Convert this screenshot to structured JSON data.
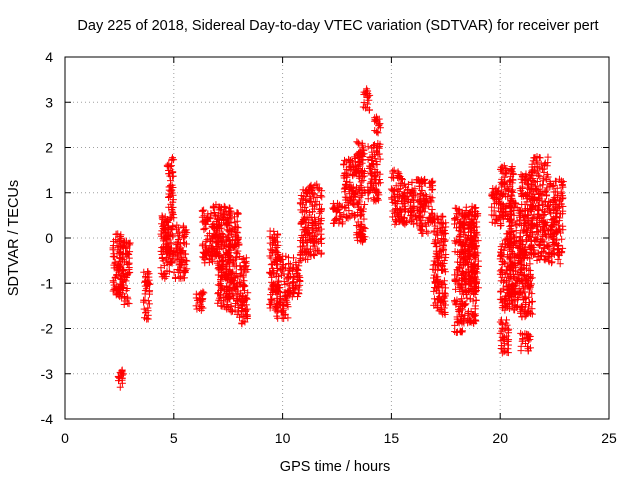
{
  "chart_data": {
    "type": "scatter",
    "title": "Day 225 of 2018, Sidereal Day-to-day VTEC variation (SDTVAR) for receiver pert",
    "xlabel": "GPS time / hours",
    "ylabel": "SDTVAR / TECUs",
    "xlim": [
      0,
      25
    ],
    "ylim": [
      -4,
      4
    ],
    "xticks": [
      "0",
      "5",
      "10",
      "15",
      "20",
      "25"
    ],
    "yticks": [
      "4",
      "3",
      "2",
      "1",
      "0",
      "-1",
      "-2",
      "-3",
      "-4"
    ],
    "grid": true,
    "marker": "plus",
    "color": "#ff0000",
    "series": [
      {
        "name": "SDTVAR",
        "clusters": [
          {
            "x": [
              2.2,
              2.6
            ],
            "y": [
              -1.3,
              0.1
            ]
          },
          {
            "x": [
              2.5,
              3.0
            ],
            "y": [
              -1.5,
              0.0
            ]
          },
          {
            "x": [
              2.4,
              2.7
            ],
            "y": [
              -3.3,
              -2.9
            ]
          },
          {
            "x": [
              3.6,
              3.9
            ],
            "y": [
              -1.8,
              -0.7
            ]
          },
          {
            "x": [
              4.4,
              4.8
            ],
            "y": [
              -0.9,
              0.5
            ]
          },
          {
            "x": [
              4.7,
              5.0
            ],
            "y": [
              -0.6,
              1.8
            ]
          },
          {
            "x": [
              5.0,
              5.6
            ],
            "y": [
              -0.9,
              0.3
            ]
          },
          {
            "x": [
              6.0,
              6.4
            ],
            "y": [
              -1.6,
              -1.1
            ]
          },
          {
            "x": [
              6.3,
              7.1
            ],
            "y": [
              -0.6,
              0.8
            ]
          },
          {
            "x": [
              7.0,
              7.6
            ],
            "y": [
              -1.6,
              0.7
            ]
          },
          {
            "x": [
              7.4,
              8.0
            ],
            "y": [
              -1.7,
              0.6
            ]
          },
          {
            "x": [
              8.0,
              8.4
            ],
            "y": [
              -1.9,
              -0.4
            ]
          },
          {
            "x": [
              9.4,
              9.8
            ],
            "y": [
              -1.6,
              0.2
            ]
          },
          {
            "x": [
              9.7,
              10.3
            ],
            "y": [
              -1.8,
              -0.4
            ]
          },
          {
            "x": [
              10.3,
              10.8
            ],
            "y": [
              -1.3,
              -0.4
            ]
          },
          {
            "x": [
              10.8,
              11.2
            ],
            "y": [
              -0.5,
              1.1
            ]
          },
          {
            "x": [
              11.2,
              11.8
            ],
            "y": [
              -0.4,
              1.2
            ]
          },
          {
            "x": [
              12.3,
              12.8
            ],
            "y": [
              0.3,
              0.8
            ]
          },
          {
            "x": [
              12.8,
              13.4
            ],
            "y": [
              0.4,
              1.8
            ]
          },
          {
            "x": [
              13.4,
              13.8
            ],
            "y": [
              -0.1,
              2.2
            ]
          },
          {
            "x": [
              13.7,
              14.0
            ],
            "y": [
              2.8,
              3.3
            ]
          },
          {
            "x": [
              14.2,
              14.5
            ],
            "y": [
              2.3,
              2.7
            ]
          },
          {
            "x": [
              13.9,
              14.5
            ],
            "y": [
              0.8,
              2.1
            ]
          },
          {
            "x": [
              15.0,
              15.6
            ],
            "y": [
              0.3,
              1.5
            ]
          },
          {
            "x": [
              15.5,
              16.4
            ],
            "y": [
              0.3,
              1.3
            ]
          },
          {
            "x": [
              16.3,
              16.9
            ],
            "y": [
              0.1,
              1.3
            ]
          },
          {
            "x": [
              16.9,
              17.5
            ],
            "y": [
              -1.5,
              0.5
            ]
          },
          {
            "x": [
              17.1,
              17.5
            ],
            "y": [
              -1.7,
              -1.3
            ]
          },
          {
            "x": [
              17.9,
              18.3
            ],
            "y": [
              -2.1,
              -1.3
            ]
          },
          {
            "x": [
              17.9,
              18.4
            ],
            "y": [
              -1.2,
              0.7
            ]
          },
          {
            "x": [
              18.3,
              18.9
            ],
            "y": [
              -1.9,
              0.7
            ]
          },
          {
            "x": [
              18.5,
              19.0
            ],
            "y": [
              -1.2,
              0.6
            ]
          },
          {
            "x": [
              19.6,
              20.0
            ],
            "y": [
              0.3,
              1.1
            ]
          },
          {
            "x": [
              20.0,
              20.4
            ],
            "y": [
              -2.6,
              -1.8
            ]
          },
          {
            "x": [
              20.0,
              20.6
            ],
            "y": [
              -1.6,
              1.6
            ]
          },
          {
            "x": [
              20.4,
              21.0
            ],
            "y": [
              -1.6,
              0.8
            ]
          },
          {
            "x": [
              20.9,
              21.4
            ],
            "y": [
              -2.5,
              -2.1
            ]
          },
          {
            "x": [
              20.9,
              21.5
            ],
            "y": [
              -1.8,
              1.5
            ]
          },
          {
            "x": [
              21.4,
              22.2
            ],
            "y": [
              -0.5,
              1.8
            ]
          },
          {
            "x": [
              22.2,
              22.9
            ],
            "y": [
              -0.6,
              1.3
            ]
          }
        ]
      }
    ]
  }
}
